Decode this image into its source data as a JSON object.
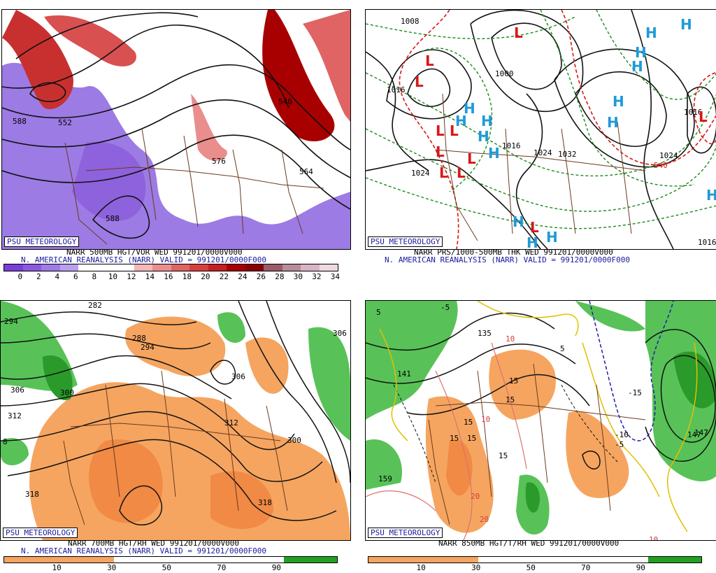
{
  "badge": "PSU METEOROLOGY",
  "panels": {
    "vor": {
      "title": "NARR 500MB HGT/VOR WED 991201/0000V000",
      "subtitle": "N. AMERICAN REANALYSIS (NARR) VALID = 991201/0000F000",
      "scale": [
        "0",
        "2",
        "4",
        "6",
        "8",
        "10",
        "12",
        "14",
        "16",
        "18",
        "20",
        "22",
        "24",
        "26",
        "28",
        "30",
        "32",
        "34"
      ],
      "colors": [
        "#7a3fd8",
        "#8d57e0",
        "#a07ae6",
        "#b9a0ee",
        "#ffffff",
        "#ffffff",
        "#ffffff",
        "#f3b8b8",
        "#ea8d8d",
        "#e06464",
        "#d84040",
        "#c42020",
        "#a80000",
        "#8a0000",
        "#9c5a6a",
        "#b88c9c",
        "#d8b4c4",
        "#f0d8e0"
      ],
      "labels": [
        "576",
        "588",
        "552",
        "540",
        "564",
        "588"
      ]
    },
    "prs": {
      "title": "NARR PRS/1000-500MB THK WED 991201/0000V000",
      "subtitle": "N. AMERICAN REANALYSIS (NARR) VALID = 991201/0000F000",
      "labels": [
        "1008",
        "1016",
        "1024",
        "1000",
        "1016",
        "1024",
        "1032",
        "1024",
        "1016",
        "1016",
        "540"
      ],
      "H": "H",
      "L": "L"
    },
    "rh700": {
      "title": "NARR 700MB HGT/RH WED 991201/0000V000",
      "subtitle": "N. AMERICAN REANALYSIS (NARR) VALID = 991201/0000F000",
      "scale": [
        "10",
        "30",
        "50",
        "70",
        "90"
      ],
      "labels": [
        "282",
        "294",
        "288",
        "294",
        "306",
        "300",
        "312",
        "306",
        "312",
        "300",
        "318",
        "318",
        "8",
        "306"
      ]
    },
    "t850": {
      "title": "NARR 850MB HGT/T/RH WED 991201/0000V000",
      "scale": [
        "10",
        "30",
        "50",
        "70",
        "90"
      ],
      "labels": [
        "135",
        "141",
        "147",
        "159",
        "-5",
        "5",
        "15",
        "15",
        "15",
        "15",
        "15",
        "15",
        "10",
        "20",
        "20",
        "10",
        "-15",
        "-10",
        "-5",
        "10",
        "5",
        "147"
      ]
    }
  }
}
